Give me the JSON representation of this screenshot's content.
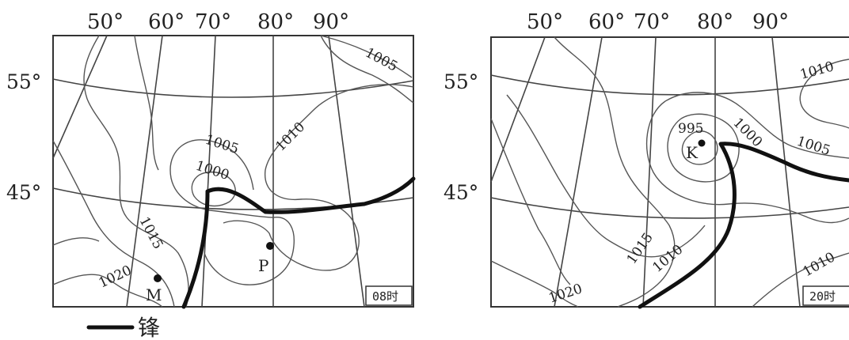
{
  "panels": [
    {
      "lon_labels": [
        "50°",
        "60°",
        "70°",
        "80°",
        "90°"
      ],
      "lat_labels": [
        "55°",
        "45°"
      ],
      "isobar_labels": [
        "1005",
        "1010",
        "1005",
        "1000",
        "1015",
        "1020"
      ],
      "points": [
        "P",
        "M"
      ],
      "time_label": "08时"
    },
    {
      "lon_labels": [
        "50°",
        "60°",
        "70°",
        "80°",
        "90°"
      ],
      "lat_labels": [
        "55°",
        "45°"
      ],
      "isobar_labels": [
        "1010",
        "995",
        "1000",
        "1005",
        "1015",
        "1010",
        "1020",
        "1010"
      ],
      "points": [
        "K"
      ],
      "time_label": "20时"
    }
  ],
  "legend": {
    "label": "锋"
  }
}
